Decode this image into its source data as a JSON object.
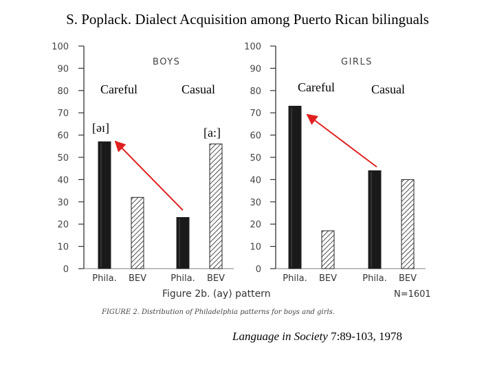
{
  "header": {
    "title": "S. Poplack. Dialect Acquisition among Puerto Rican bilinguals"
  },
  "annotations": {
    "careful_left": "Careful",
    "casual_left": "Casual",
    "careful_right": "Careful",
    "casual_right": "Casual",
    "phone_left": "[əɪ]",
    "phone_right": "[a:]",
    "arrow_color": "#e02020"
  },
  "figure": {
    "title": "Figure 2b. (ay) pattern",
    "n_label": "N=1601",
    "caption": "FIGURE 2. Distribution of Philadelphia patterns for boys and girls."
  },
  "citation": {
    "journal": "Language in Society",
    "rest": " 7:89-103, 1978"
  },
  "chart_data": [
    {
      "type": "bar",
      "title": "BOYS",
      "categories": [
        "Phila.",
        "BEV",
        "Phila.",
        "BEV"
      ],
      "values": [
        57,
        32,
        23,
        56
      ],
      "styles": [
        "solid",
        "hatched",
        "solid",
        "hatched"
      ],
      "ylim": [
        0,
        100
      ],
      "yticks": [
        0,
        10,
        20,
        30,
        40,
        50,
        60,
        70,
        80,
        90,
        100
      ],
      "grid": false
    },
    {
      "type": "bar",
      "title": "GIRLS",
      "categories": [
        "Phila.",
        "BEV",
        "Phila.",
        "BEV"
      ],
      "values": [
        73,
        17,
        44,
        40
      ],
      "styles": [
        "solid",
        "hatched",
        "solid",
        "hatched"
      ],
      "ylim": [
        0,
        100
      ],
      "yticks": [
        0,
        10,
        20,
        30,
        40,
        50,
        60,
        70,
        80,
        90,
        100
      ],
      "grid": false
    }
  ]
}
